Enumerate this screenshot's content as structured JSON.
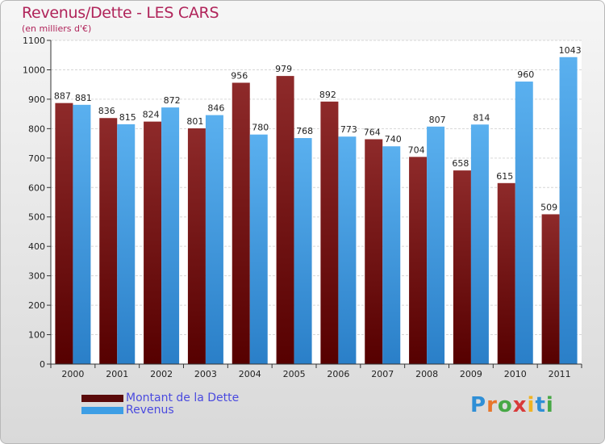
{
  "title": "Revenus/Dette - LES CARS",
  "subtitle": "(en milliers d'€)",
  "logo": {
    "letters": [
      {
        "ch": "P",
        "color": "#2f8fd6"
      },
      {
        "ch": "r",
        "color": "#e8762b"
      },
      {
        "ch": "o",
        "color": "#47a845"
      },
      {
        "ch": "x",
        "color": "#d83a3a"
      },
      {
        "ch": "i",
        "color": "#f0b323"
      },
      {
        "ch": "t",
        "color": "#2f8fd6"
      },
      {
        "ch": "i",
        "color": "#47a845"
      }
    ]
  },
  "colors": {
    "dette": "#8a1f1f",
    "revenus": "#3d9ee5",
    "title": "#b0245a",
    "legend_text": "#4a4adf"
  },
  "chart_data": {
    "type": "bar",
    "title": "Revenus/Dette - LES CARS",
    "subtitle": "(en milliers d'€)",
    "categories": [
      "2000",
      "2001",
      "2002",
      "2003",
      "2004",
      "2005",
      "2006",
      "2007",
      "2008",
      "2009",
      "2010",
      "2011"
    ],
    "series": [
      {
        "name": "Montant de la Dette",
        "values": [
          887,
          836,
          824,
          801,
          956,
          979,
          892,
          764,
          704,
          658,
          615,
          509
        ]
      },
      {
        "name": "Revenus",
        "values": [
          881,
          815,
          872,
          846,
          780,
          768,
          773,
          740,
          807,
          814,
          960,
          1043
        ]
      }
    ],
    "ylim": [
      0,
      1100
    ],
    "yticks": [
      0,
      100,
      200,
      300,
      400,
      500,
      600,
      700,
      800,
      900,
      1000,
      1100
    ],
    "grid": true,
    "legend": "bottom-left"
  }
}
